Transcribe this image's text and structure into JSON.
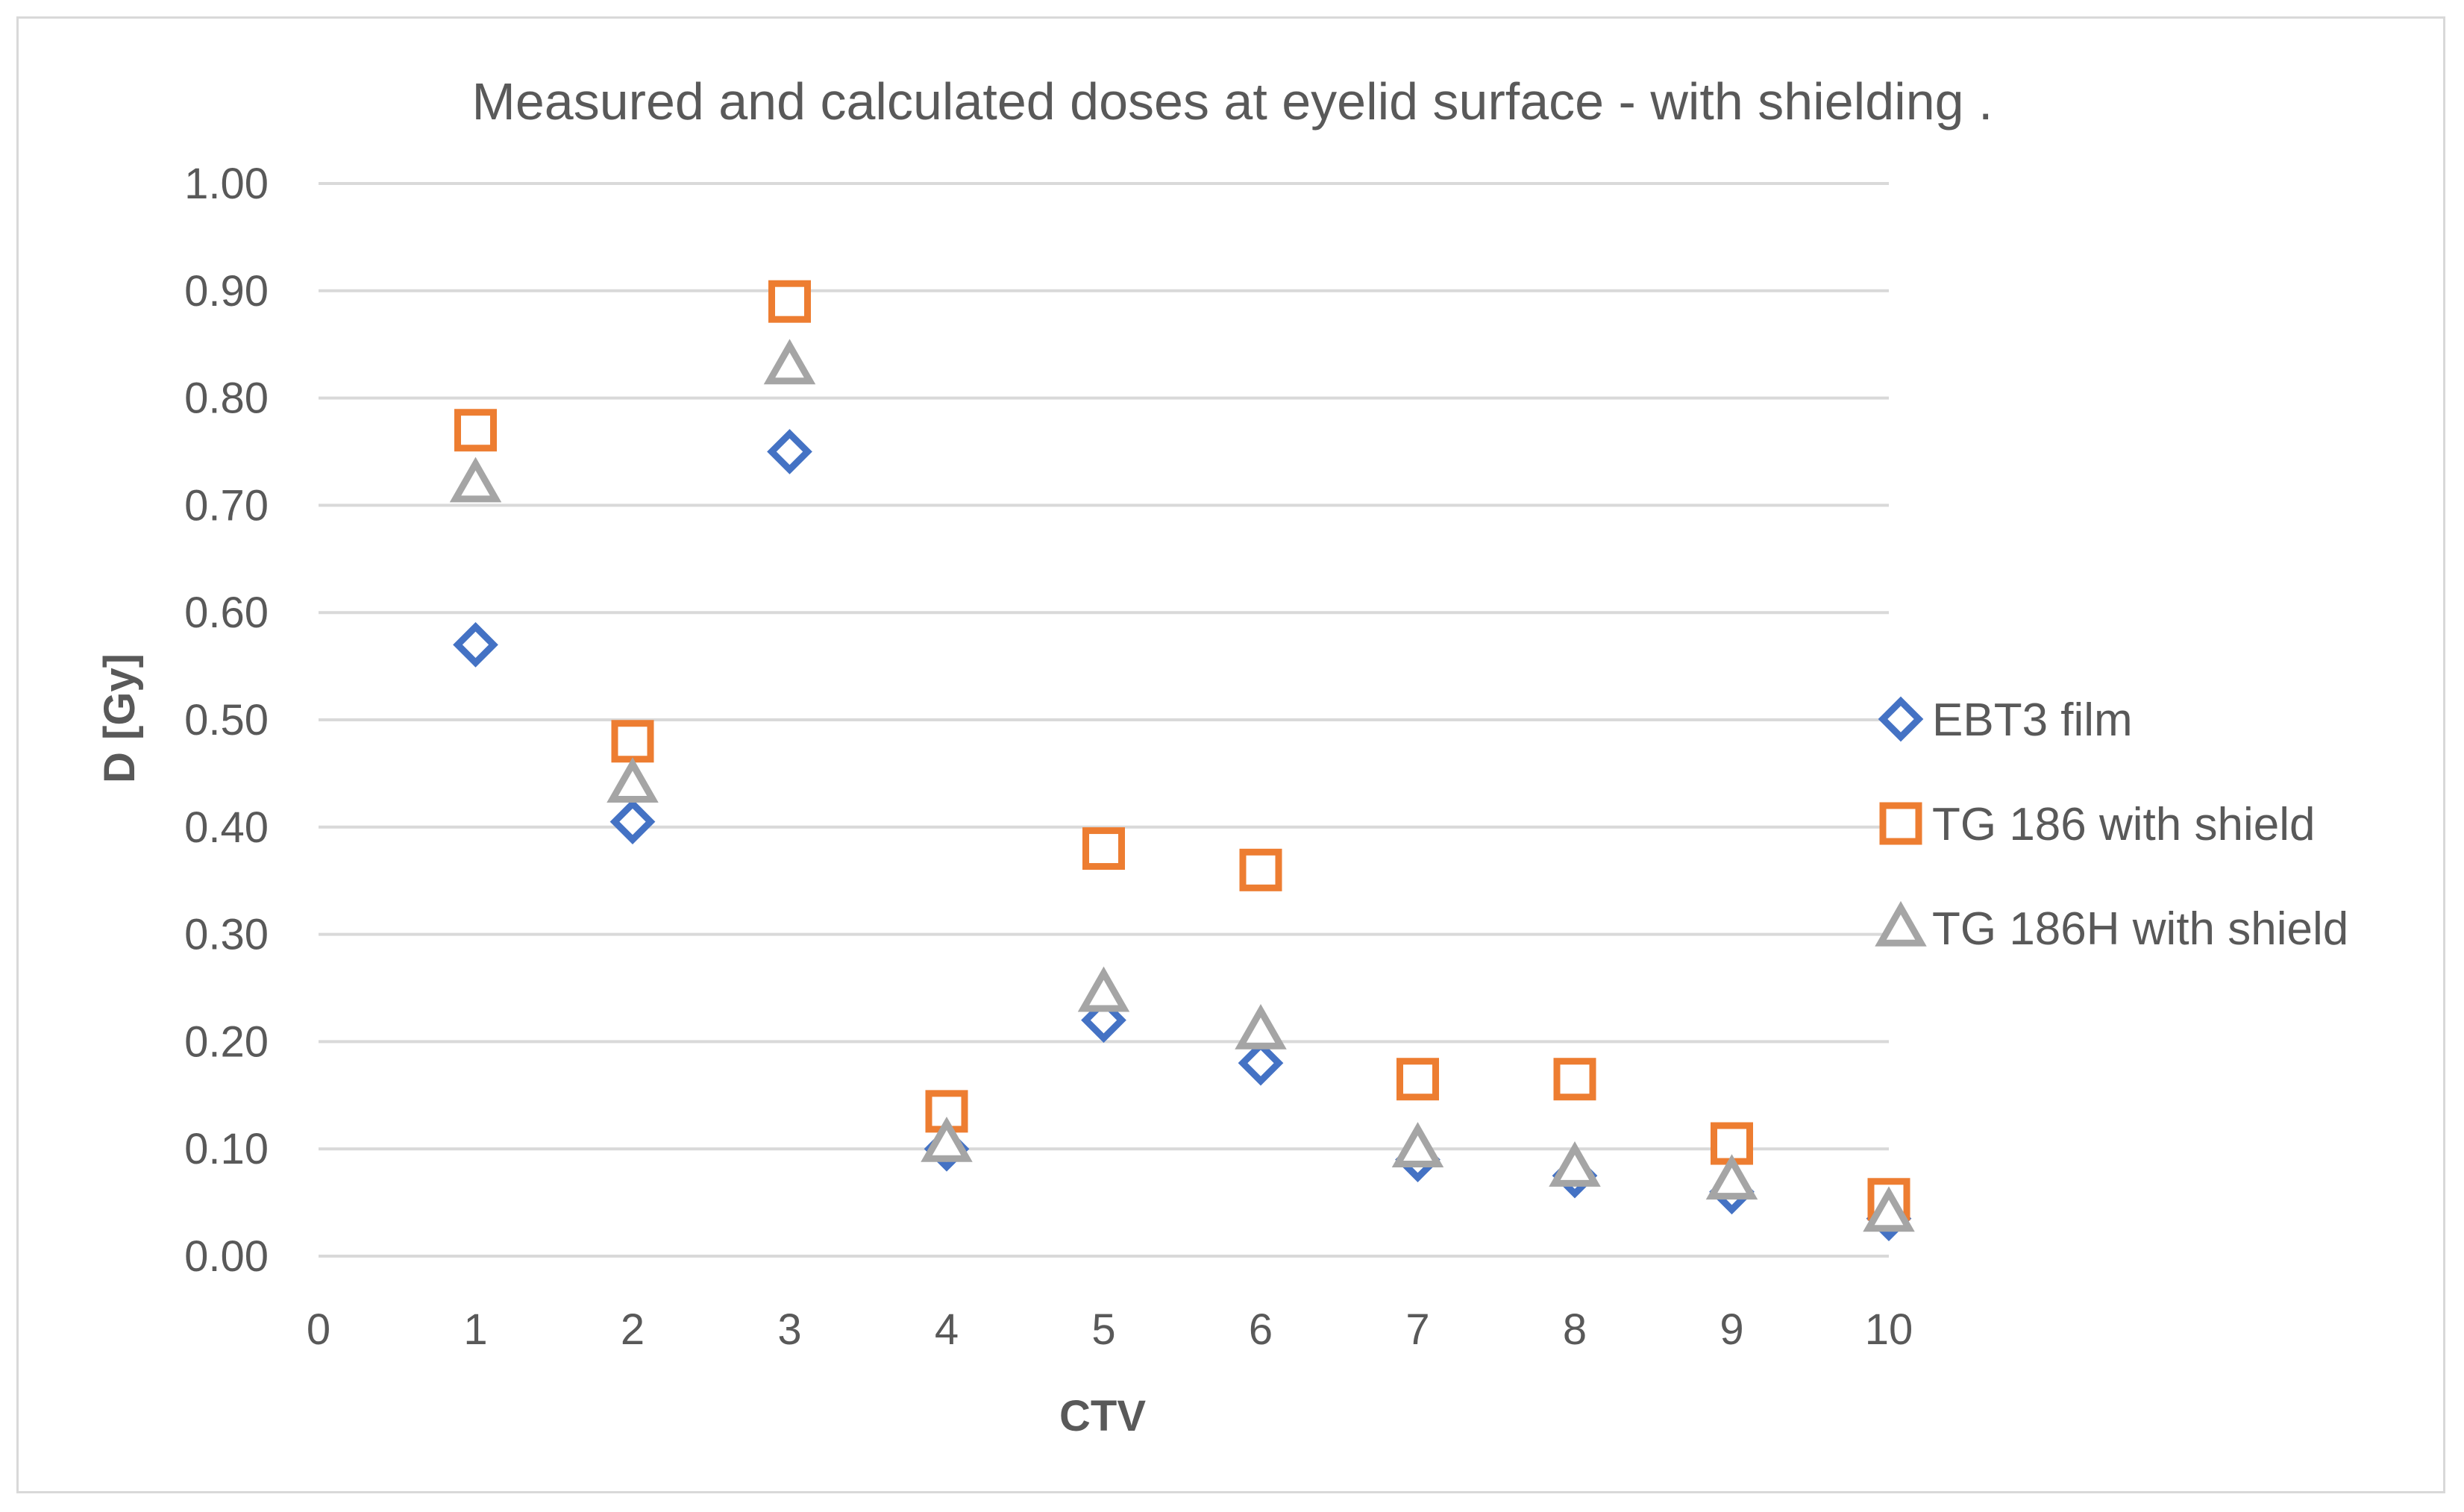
{
  "chart_data": {
    "type": "scatter",
    "title": "Measured and calculated doses at eyelid surface - with shielding .",
    "xlabel": "CTV",
    "ylabel": "D [Gy]",
    "xlim": [
      0,
      10
    ],
    "ylim": [
      0,
      1.0
    ],
    "x_ticks": [
      "0",
      "1",
      "2",
      "3",
      "4",
      "5",
      "6",
      "7",
      "8",
      "9",
      "10"
    ],
    "y_ticks": [
      "0.00",
      "0.10",
      "0.20",
      "0.30",
      "0.40",
      "0.50",
      "0.60",
      "0.70",
      "0.80",
      "0.90",
      "1.00"
    ],
    "grid": "horizontal",
    "legend_position": "right",
    "series": [
      {
        "name": "EBT3 film",
        "marker": "diamond",
        "color": "#4472c4",
        "x": [
          1,
          2,
          3,
          4,
          5,
          6,
          7,
          8,
          9,
          10
        ],
        "y": [
          0.57,
          0.405,
          0.75,
          0.1,
          0.22,
          0.18,
          0.09,
          0.075,
          0.06,
          0.035
        ]
      },
      {
        "name": "TG 186 with shield",
        "marker": "square",
        "color": "#ed7d31",
        "x": [
          1,
          2,
          3,
          4,
          5,
          6,
          7,
          8,
          9,
          10
        ],
        "y": [
          0.77,
          0.48,
          0.89,
          0.135,
          0.38,
          0.36,
          0.165,
          0.165,
          0.105,
          0.053
        ]
      },
      {
        "name": "TG 186H with shield",
        "marker": "triangle",
        "color": "#a5a5a5",
        "x": [
          1,
          2,
          3,
          4,
          5,
          6,
          7,
          8,
          9,
          10
        ],
        "y": [
          0.72,
          0.44,
          0.83,
          0.105,
          0.245,
          0.21,
          0.1,
          0.082,
          0.07,
          0.04
        ]
      }
    ]
  }
}
